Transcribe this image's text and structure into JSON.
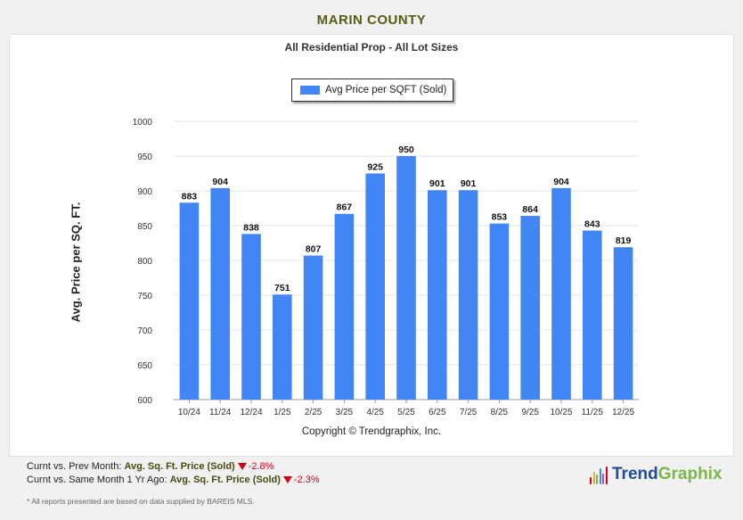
{
  "page_title": "MARIN COUNTY",
  "footer": {
    "stat1_prefix": "Curnt vs. Prev Month:",
    "stat1_metric": "Avg. Sq. Ft. Price (Sold)",
    "stat1_change": "-2.8%",
    "stat2_prefix": "Curnt vs. Same Month 1 Yr Ago:",
    "stat2_metric": "Avg. Sq. Ft. Price (Sold)",
    "stat2_change": "-2.3%",
    "note": "* All reports presented are based on data supplied by BAREIS MLS.",
    "logo_trend": "Trend",
    "logo_graphix": "Graphix"
  },
  "colors": {
    "bar": "#4285f4",
    "decline": "#d0021b",
    "title": "#5b5a13"
  },
  "chart_data": {
    "type": "bar",
    "title": "All Residential Prop - All Lot Sizes",
    "ylabel": "Avg. Price per SQ. FT.",
    "xlabel": "",
    "copyright": "Copyright © Trendgraphix, Inc.",
    "ylim": [
      600,
      1000
    ],
    "yticks": [
      600,
      650,
      700,
      750,
      800,
      850,
      900,
      950,
      1000
    ],
    "grid": true,
    "legend_position": "top-center",
    "categories": [
      "10/24",
      "11/24",
      "12/24",
      "1/25",
      "2/25",
      "3/25",
      "4/25",
      "5/25",
      "6/25",
      "7/25",
      "8/25",
      "9/25",
      "10/25",
      "11/25",
      "12/25"
    ],
    "series": [
      {
        "name": "Avg Price per SQFT (Sold)",
        "values": [
          883,
          904,
          838,
          751,
          807,
          867,
          925,
          950,
          901,
          901,
          853,
          864,
          904,
          843,
          819
        ]
      }
    ]
  }
}
